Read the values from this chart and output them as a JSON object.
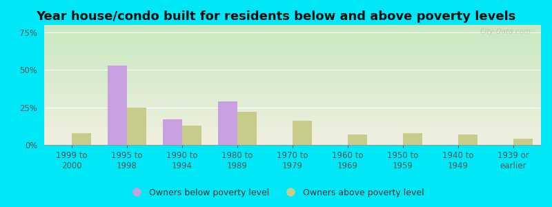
{
  "title": "Year house/condo built for residents below and above poverty levels",
  "categories": [
    "1999 to\n2000",
    "1995 to\n1998",
    "1990 to\n1994",
    "1980 to\n1989",
    "1970 to\n1979",
    "1960 to\n1969",
    "1950 to\n1959",
    "1940 to\n1949",
    "1939 or\nearlier"
  ],
  "below_poverty": [
    0,
    53,
    17,
    29,
    0,
    0,
    0,
    0,
    0
  ],
  "above_poverty": [
    8,
    25,
    13,
    22,
    16,
    7,
    8,
    7,
    4
  ],
  "below_color": "#c8a0e0",
  "above_color": "#c8cc8a",
  "bar_width": 0.35,
  "ylim": [
    0,
    80
  ],
  "yticks": [
    0,
    25,
    50,
    75
  ],
  "ytick_labels": [
    "0%",
    "25%",
    "50%",
    "75%"
  ],
  "legend_below": "Owners below poverty level",
  "legend_above": "Owners above poverty level",
  "bg_outer": "#00e8f8",
  "bg_grad_top": "#c8e8c0",
  "bg_grad_bottom": "#f0f0e0",
  "title_fontsize": 13,
  "tick_fontsize": 8.5,
  "watermark": "City-Data.com"
}
